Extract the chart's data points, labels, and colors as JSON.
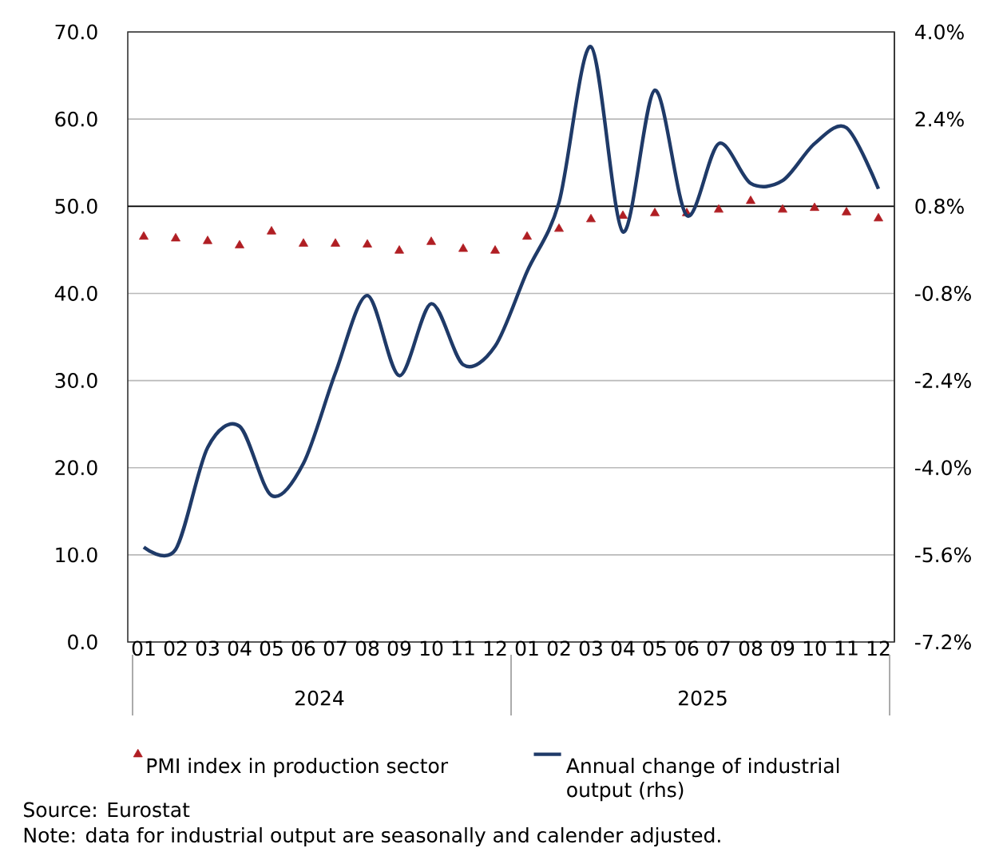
{
  "chart_data": {
    "type": "line",
    "categories": [
      "01",
      "02",
      "03",
      "04",
      "05",
      "06",
      "07",
      "08",
      "09",
      "10",
      "11",
      "12",
      "01",
      "02",
      "03",
      "04",
      "05",
      "06",
      "07",
      "08",
      "09",
      "10",
      "11",
      "12"
    ],
    "series": [
      {
        "name": "PMI index in production sector",
        "type": "scatter",
        "marker": "triangle",
        "color": "#b01e23",
        "values": [
          46.5,
          46.3,
          46.0,
          45.5,
          47.1,
          45.7,
          45.7,
          45.6,
          44.9,
          45.9,
          45.1,
          44.9,
          46.5,
          47.4,
          48.5,
          48.9,
          49.2,
          49.2,
          49.6,
          50.6,
          49.6,
          49.8,
          49.3,
          48.6
        ]
      },
      {
        "name": "Annual change of industrial output (rhs)",
        "axis": "y2",
        "line_style": "solid",
        "color": "#1f3a68",
        "values": [
          -5.46,
          -5.5,
          -3.63,
          -3.24,
          -4.51,
          -3.92,
          -2.26,
          -0.84,
          -2.31,
          -0.99,
          -2.11,
          -1.77,
          -0.4,
          0.87,
          3.73,
          0.33,
          2.93,
          0.63,
          1.95,
          1.22,
          1.27,
          1.95,
          2.24,
          1.12
        ]
      }
    ],
    "ylim": [
      0,
      70
    ],
    "yticks": [
      {
        "value": 0,
        "label": "0.0"
      },
      {
        "value": 10,
        "label": "10.0"
      },
      {
        "value": 20,
        "label": "20.0"
      },
      {
        "value": 30,
        "label": "30.0"
      },
      {
        "value": 40,
        "label": "40.0"
      },
      {
        "value": 50,
        "label": "50.0"
      },
      {
        "value": 60,
        "label": "60.0"
      },
      {
        "value": 70,
        "label": "70.0"
      }
    ],
    "y2lim": [
      -7.2,
      4.0
    ],
    "y2ticks": [
      {
        "value": -7.2,
        "label": "-7.2%"
      },
      {
        "value": -5.6,
        "label": "-5.6%"
      },
      {
        "value": -4.0,
        "label": "-4.0%"
      },
      {
        "value": -2.4,
        "label": "-2.4%"
      },
      {
        "value": -0.8,
        "label": "-0.8%"
      },
      {
        "value": 0.8,
        "label": "0.8%"
      },
      {
        "value": 2.4,
        "label": "2.4%"
      },
      {
        "value": 4.0,
        "label": "4.0%"
      }
    ],
    "ref_lines": [
      {
        "axis": "y",
        "value": 50,
        "color": "#000000"
      }
    ],
    "grid": "y",
    "legend": "bottom",
    "annotations": [
      "2024",
      "2025",
      "Source: Eurostat",
      "Note: data for industrial output are seasonally and calender adjusted."
    ]
  }
}
